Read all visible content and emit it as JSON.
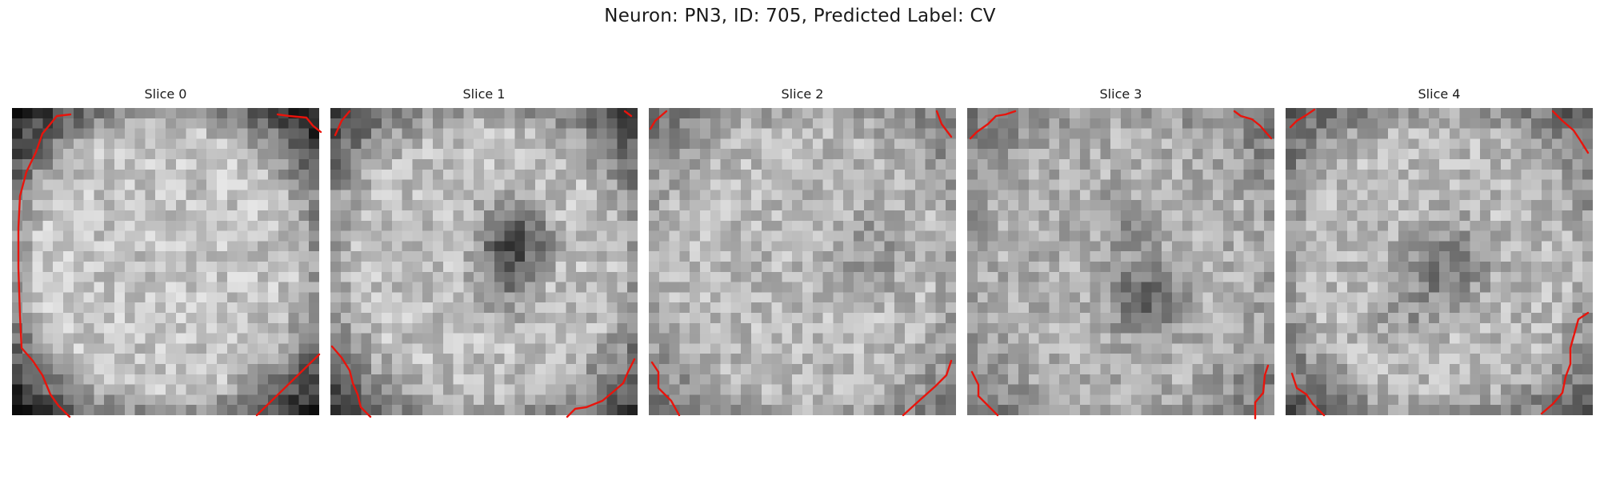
{
  "figure": {
    "title": "Neuron: PN3, ID: 705, Predicted Label: CV",
    "contour_color": "#e8140c",
    "colormap": "gray"
  },
  "slices": [
    {
      "title": "Slice 0"
    },
    {
      "title": "Slice 1"
    },
    {
      "title": "Slice 2"
    },
    {
      "title": "Slice 3"
    },
    {
      "title": "Slice 4"
    }
  ]
}
